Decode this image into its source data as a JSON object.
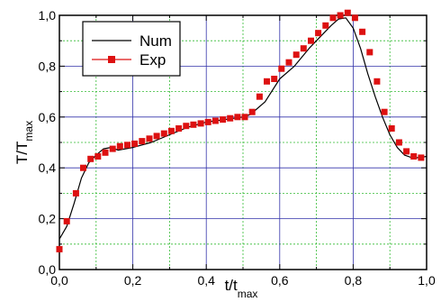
{
  "chart_data": {
    "type": "line",
    "xlabel": "t/t",
    "xlabel_sub": "max",
    "ylabel": "T/T",
    "ylabel_sub": "max",
    "xlim": [
      0.0,
      1.0
    ],
    "ylim": [
      0.0,
      1.0
    ],
    "x_ticks": [
      "0,0",
      "0,2",
      "0,4",
      "0,6",
      "0,8",
      "1,0"
    ],
    "y_ticks": [
      "0,0",
      "0,2",
      "0,4",
      "0,6",
      "0,8",
      "1,0"
    ],
    "grid": true,
    "legend_position": "top-left",
    "colors": {
      "num": "#000000",
      "exp": "#dd1111",
      "grid_major": "#3333aa",
      "grid_minor": "#33bb33"
    },
    "series": [
      {
        "name": "Num",
        "style": "line",
        "x": [
          0.0,
          0.02,
          0.04,
          0.06,
          0.08,
          0.1,
          0.12,
          0.14,
          0.16,
          0.2,
          0.25,
          0.3,
          0.35,
          0.4,
          0.45,
          0.5,
          0.52,
          0.56,
          0.6,
          0.64,
          0.68,
          0.72,
          0.74,
          0.76,
          0.78,
          0.8,
          0.82,
          0.84,
          0.86,
          0.88,
          0.9,
          0.92,
          0.94,
          0.96,
          0.98,
          1.0
        ],
        "y": [
          0.12,
          0.17,
          0.26,
          0.36,
          0.42,
          0.45,
          0.475,
          0.48,
          0.47,
          0.48,
          0.5,
          0.53,
          0.56,
          0.58,
          0.59,
          0.6,
          0.61,
          0.66,
          0.75,
          0.8,
          0.87,
          0.93,
          0.96,
          0.985,
          0.99,
          0.95,
          0.87,
          0.77,
          0.68,
          0.6,
          0.53,
          0.48,
          0.45,
          0.44,
          0.44,
          0.445
        ]
      },
      {
        "name": "Exp",
        "style": "marker",
        "x": [
          0.0,
          0.02,
          0.045,
          0.065,
          0.085,
          0.105,
          0.125,
          0.145,
          0.165,
          0.185,
          0.205,
          0.225,
          0.245,
          0.265,
          0.285,
          0.305,
          0.325,
          0.345,
          0.365,
          0.385,
          0.405,
          0.425,
          0.445,
          0.465,
          0.485,
          0.505,
          0.525,
          0.545,
          0.565,
          0.585,
          0.605,
          0.625,
          0.645,
          0.665,
          0.685,
          0.705,
          0.725,
          0.745,
          0.765,
          0.785,
          0.805,
          0.825,
          0.845,
          0.865,
          0.885,
          0.905,
          0.925,
          0.945,
          0.965,
          0.985
        ],
        "y": [
          0.08,
          0.19,
          0.3,
          0.4,
          0.435,
          0.445,
          0.46,
          0.475,
          0.485,
          0.49,
          0.495,
          0.505,
          0.515,
          0.525,
          0.535,
          0.545,
          0.555,
          0.565,
          0.57,
          0.575,
          0.58,
          0.585,
          0.59,
          0.595,
          0.6,
          0.6,
          0.62,
          0.68,
          0.74,
          0.75,
          0.79,
          0.815,
          0.845,
          0.87,
          0.9,
          0.93,
          0.96,
          0.99,
          1.0,
          1.01,
          0.99,
          0.935,
          0.855,
          0.74,
          0.62,
          0.555,
          0.5,
          0.465,
          0.445,
          0.44
        ]
      }
    ]
  }
}
